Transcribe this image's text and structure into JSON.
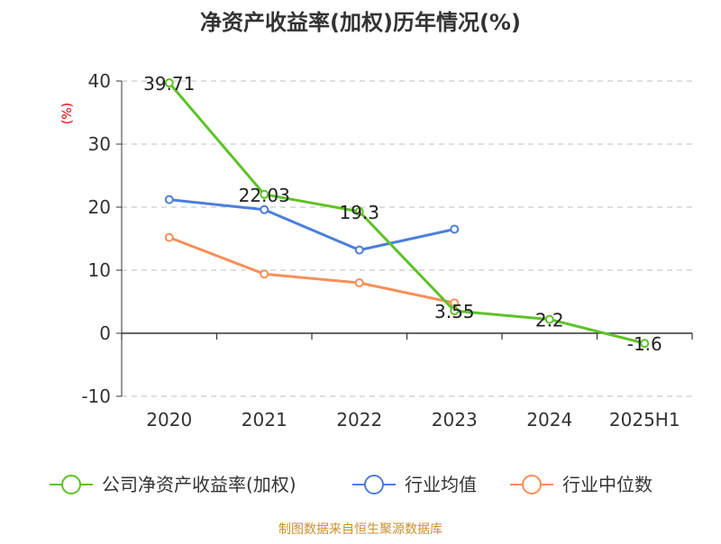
{
  "chart_data": {
    "type": "line",
    "title": "净资产收益率(加权)历年情况(%)",
    "ylabel": "(%)",
    "xlabel": "",
    "categories": [
      "2020",
      "2021",
      "2022",
      "2023",
      "2024",
      "2025H1"
    ],
    "y_ticks": [
      -10,
      0,
      10,
      20,
      30,
      40
    ],
    "ylim": [
      -10,
      40
    ],
    "grid": true,
    "legend_position": "bottom",
    "series": [
      {
        "name": "公司净资产收益率(加权)",
        "color": "#5ec227",
        "values": [
          39.71,
          22.03,
          19.3,
          3.55,
          2.2,
          -1.6
        ],
        "data_labels": [
          "39.71",
          "22.03",
          "19.3",
          "3.55",
          "2.2",
          "-1.6"
        ]
      },
      {
        "name": "行业均值",
        "color": "#4c7fd9",
        "values": [
          21.2,
          19.6,
          13.2,
          16.5,
          null,
          null
        ]
      },
      {
        "name": "行业中位数",
        "color": "#f5905a",
        "values": [
          15.2,
          9.4,
          8.0,
          4.8,
          null,
          null
        ]
      }
    ],
    "source": "制图数据来自恒生聚源数据库",
    "colors": {
      "title": "#333333",
      "axis": "#333333",
      "grid": "#cccccc",
      "ylabel": "#cc0000",
      "source": "#c8912e",
      "point_fill": "#ffffff"
    }
  }
}
